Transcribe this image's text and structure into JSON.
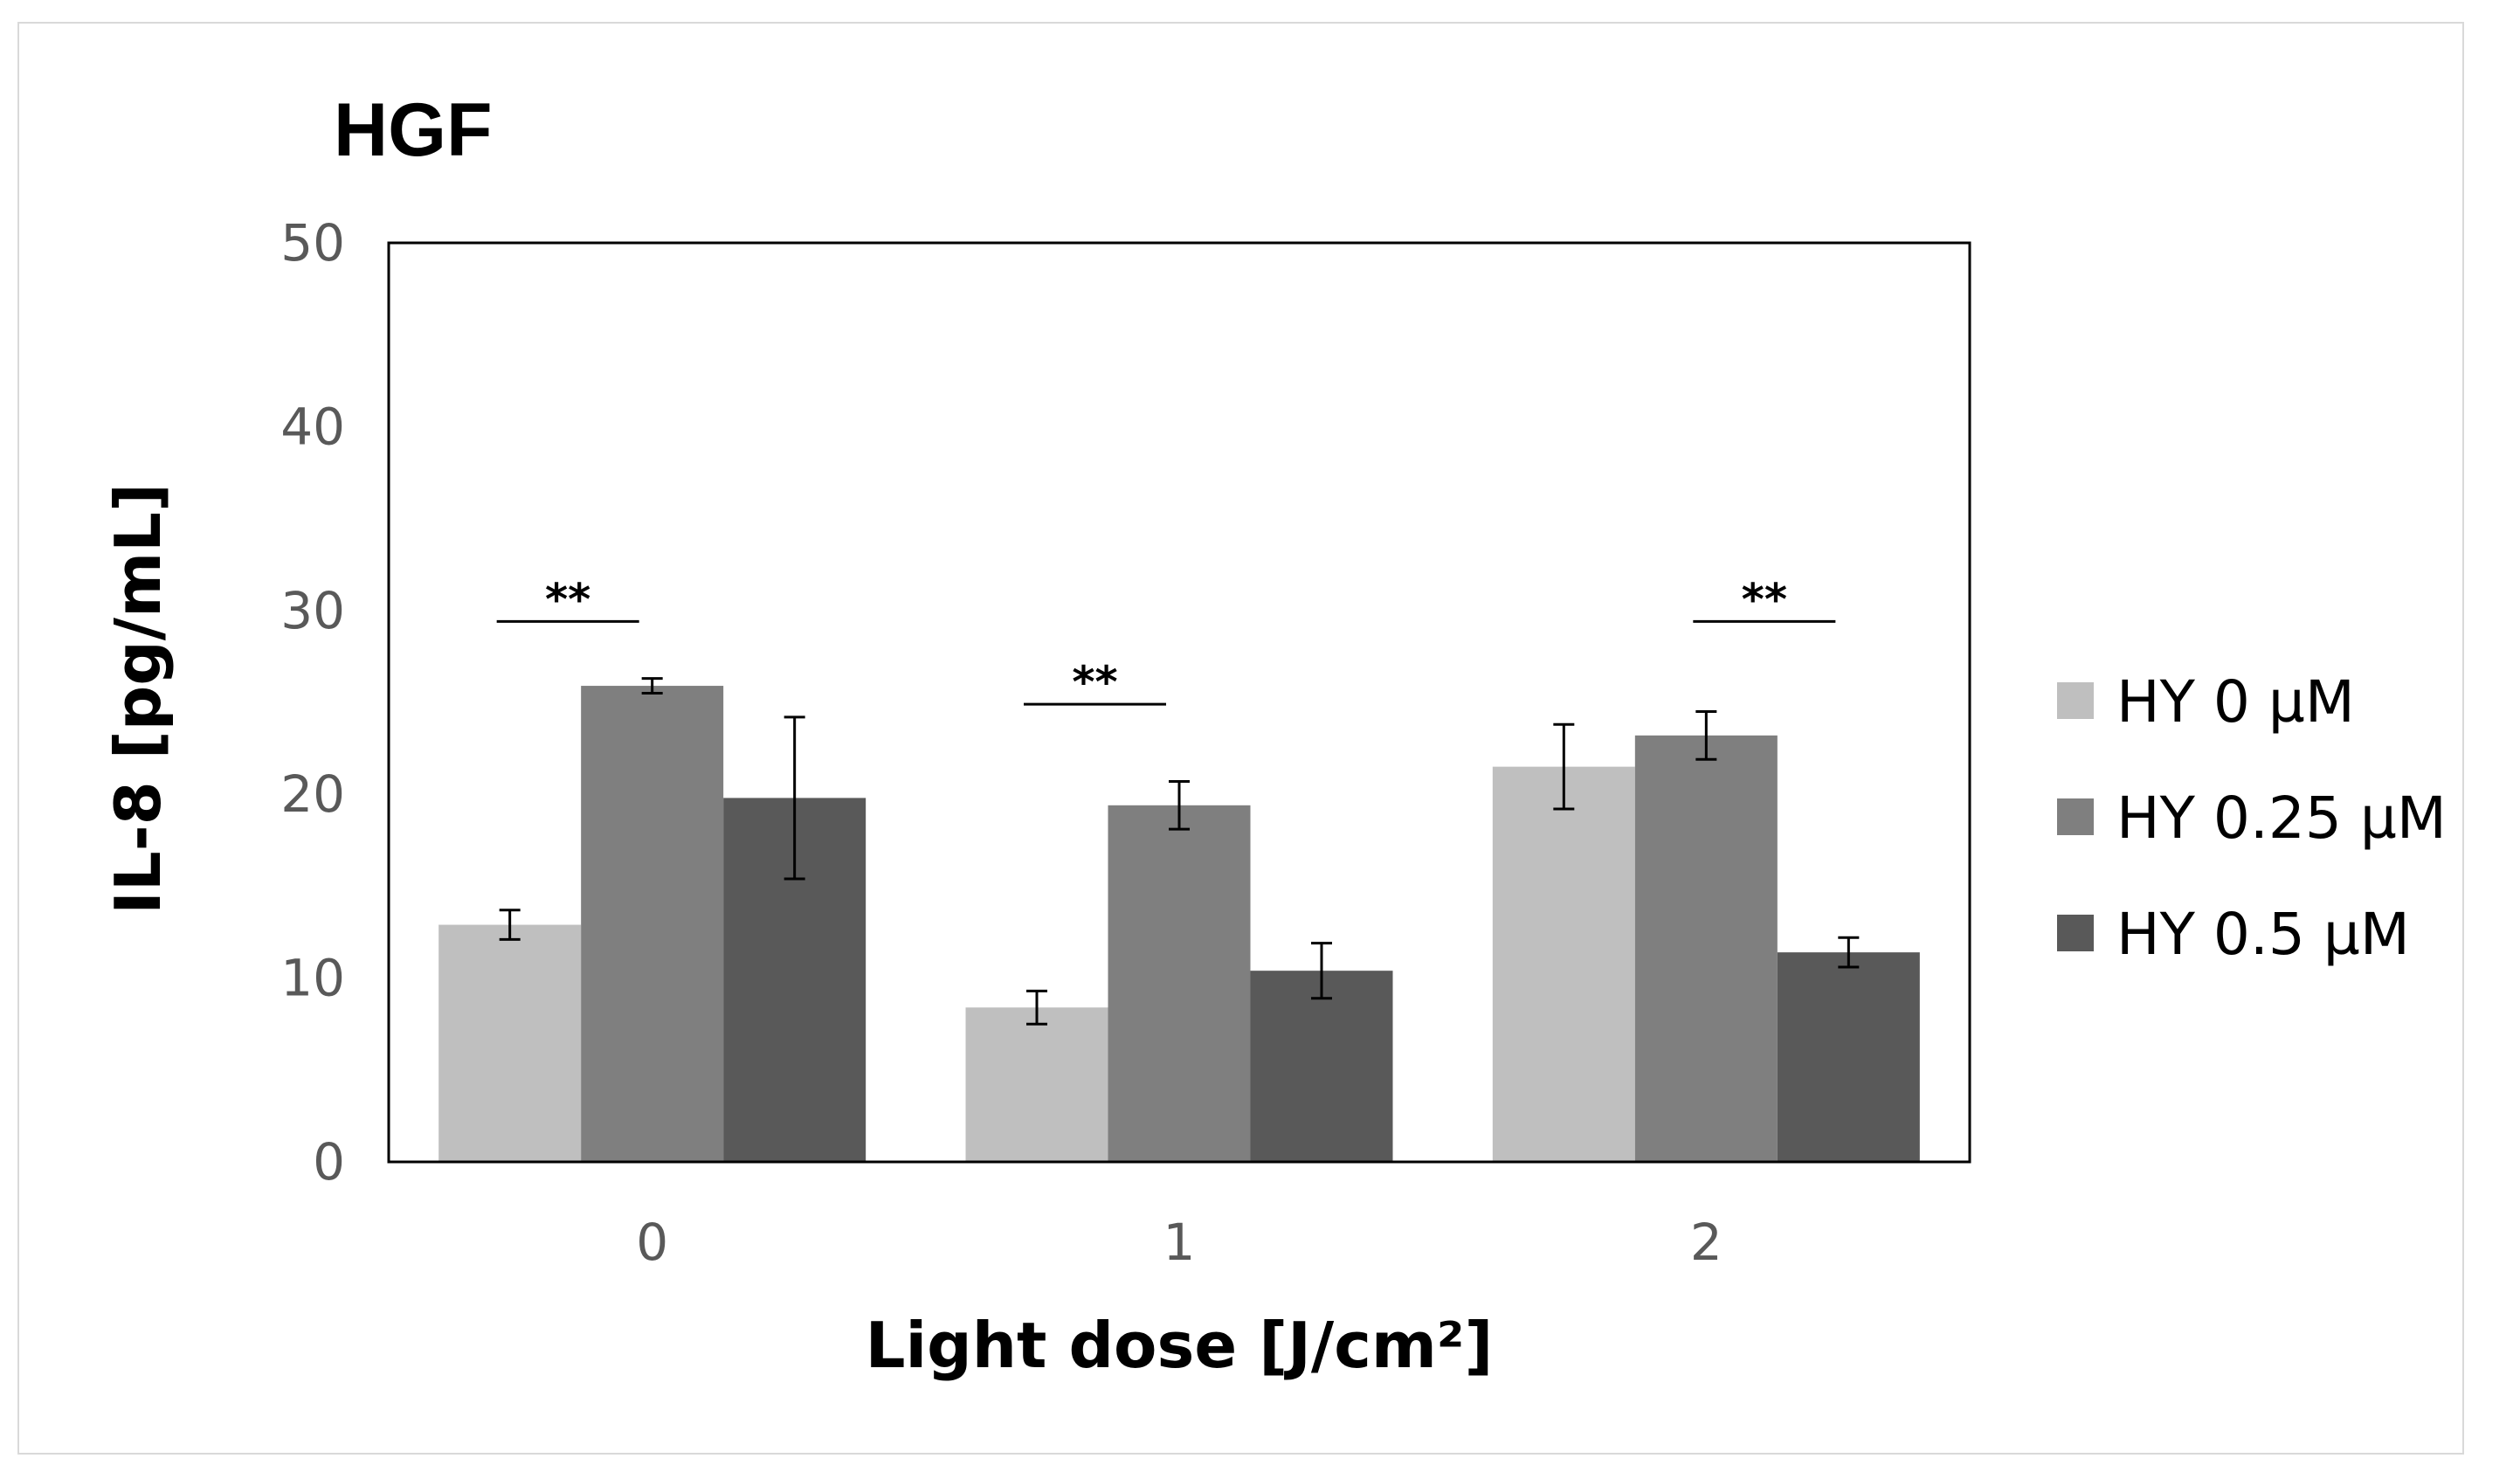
{
  "chart_data": {
    "type": "bar",
    "title": "HGF",
    "xlabel": "Light dose [J/cm²]",
    "ylabel": "IL-8 [pg/mL]",
    "ylim": [
      0,
      50
    ],
    "yticks": [
      0,
      10,
      20,
      30,
      40,
      50
    ],
    "categories": [
      "0",
      "1",
      "2"
    ],
    "series": [
      {
        "name": "HY 0 µM",
        "color": "#bfbfbf",
        "values": [
          12.9,
          8.4,
          21.5
        ],
        "errors": [
          0.8,
          0.9,
          2.3
        ]
      },
      {
        "name": "HY 0.25 µM",
        "color": "#7f7f7f",
        "values": [
          25.9,
          19.4,
          23.2
        ],
        "errors": [
          0.4,
          1.3,
          1.3
        ]
      },
      {
        "name": "HY 0.5 µM",
        "color": "#595959",
        "values": [
          19.8,
          10.4,
          11.4
        ],
        "errors": [
          4.4,
          1.5,
          0.8
        ]
      }
    ],
    "significance": [
      {
        "category": "0",
        "from_series": 0,
        "to_series": 1,
        "label": "**",
        "level": 29.4
      },
      {
        "category": "1",
        "from_series": 0,
        "to_series": 1,
        "label": "**",
        "level": 24.9
      },
      {
        "category": "2",
        "from_series": 1,
        "to_series": 2,
        "label": "**",
        "level": 29.4
      }
    ],
    "legend_position": "right"
  }
}
